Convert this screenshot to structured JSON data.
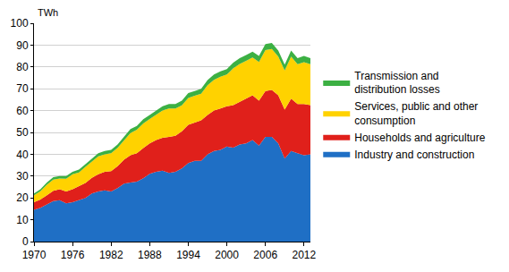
{
  "chart_data": {
    "type": "area",
    "stacked": true,
    "y_label": "TWh",
    "x": [
      1970,
      1971,
      1972,
      1973,
      1974,
      1975,
      1976,
      1977,
      1978,
      1979,
      1980,
      1981,
      1982,
      1983,
      1984,
      1985,
      1986,
      1987,
      1988,
      1989,
      1990,
      1991,
      1992,
      1993,
      1994,
      1995,
      1996,
      1997,
      1998,
      1999,
      2000,
      2001,
      2002,
      2003,
      2004,
      2005,
      2006,
      2007,
      2008,
      2009,
      2010,
      2011,
      2012,
      2013
    ],
    "series": [
      {
        "name": "Industry and construction",
        "color": "#1f6fc5",
        "values": [
          14.5,
          15.5,
          17,
          18.5,
          19,
          17.5,
          18,
          19,
          20,
          22,
          23,
          23.5,
          23,
          24.5,
          26.5,
          27,
          27.5,
          29,
          31,
          32,
          32.5,
          31.5,
          32,
          33.5,
          36,
          37,
          37,
          40,
          41.5,
          42,
          43.5,
          43,
          44.5,
          45,
          46.5,
          44,
          48,
          48,
          45,
          38,
          41.5,
          40.5,
          39.5,
          40
        ]
      },
      {
        "name": "Households and agriculture",
        "color": "#e0201b",
        "values": [
          3.5,
          3.8,
          4.2,
          4.8,
          5,
          5.5,
          6,
          6.3,
          6.8,
          7.2,
          7.8,
          8.5,
          9.3,
          10,
          11,
          12.5,
          13,
          13.8,
          14,
          14.5,
          15,
          16.5,
          16.5,
          17,
          17.5,
          17.5,
          18.5,
          18,
          18.5,
          19,
          18.5,
          19.5,
          19.5,
          20.5,
          20.5,
          20.5,
          21,
          21.5,
          22,
          22.5,
          24,
          22.5,
          23.5,
          22.5
        ]
      },
      {
        "name": "Services, public and other consumption",
        "color": "#ffd200",
        "values": [
          3.2,
          3.8,
          4.8,
          5.1,
          4.9,
          5.8,
          6.8,
          6.4,
          7.4,
          7.4,
          8.2,
          8,
          8.2,
          8.4,
          8.8,
          10.2,
          10.7,
          11.3,
          11.1,
          11.5,
          12.5,
          13,
          12.5,
          11.9,
          12.3,
          12.3,
          12.2,
          13.6,
          14.1,
          14.5,
          14.5,
          16.9,
          17.4,
          17.3,
          17.3,
          17.8,
          18.7,
          18.7,
          17.7,
          17.9,
          19.2,
          18.3,
          19.2,
          18.8
        ]
      },
      {
        "name": "Transmission and distribution losses",
        "color": "#3cb043",
        "values": [
          0.8,
          0.9,
          1,
          1.1,
          1.1,
          1.2,
          1.2,
          1.3,
          1.3,
          1.4,
          1.5,
          1.5,
          1.5,
          1.6,
          1.7,
          1.8,
          1.8,
          1.9,
          1.9,
          2,
          2,
          2,
          2,
          2.1,
          2.2,
          2.2,
          2.3,
          2.4,
          2.4,
          2.5,
          2.5,
          2.6,
          2.6,
          2.7,
          2.7,
          2.7,
          2.8,
          2.8,
          2.8,
          2.6,
          2.8,
          2.7,
          2.8,
          2.7
        ]
      }
    ],
    "xlim": [
      1970,
      2013
    ],
    "xticks": [
      1970,
      1976,
      1982,
      1988,
      1994,
      2000,
      2006,
      2012
    ],
    "ylim": [
      0,
      100
    ],
    "yticks": [
      0,
      10,
      20,
      30,
      40,
      50,
      60,
      70,
      80,
      90,
      100
    ],
    "grid": true,
    "legend": "right"
  }
}
